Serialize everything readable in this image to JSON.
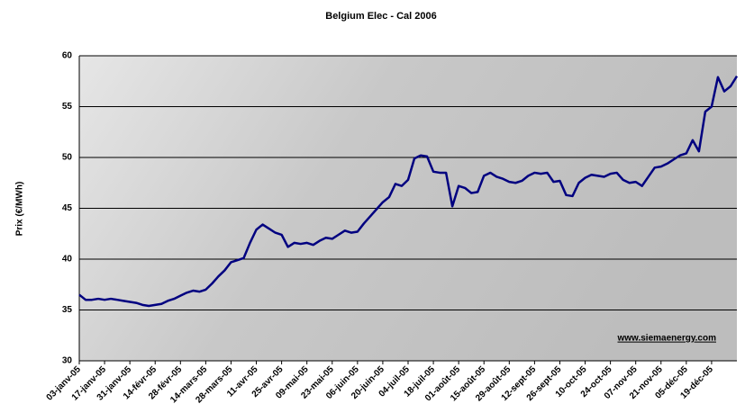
{
  "chart_data": {
    "type": "line",
    "title": "Belgium Elec - Cal 2006",
    "y_label": "Prix (€/MWh)",
    "annotation": "www.siemaenergy.com",
    "categories": [
      "03-janv-05",
      null,
      null,
      null,
      "17-janv-05",
      null,
      null,
      null,
      "31-janv-05",
      null,
      null,
      null,
      "14-févr-05",
      null,
      null,
      null,
      "28-févr-05",
      null,
      null,
      null,
      "14-mars-05",
      null,
      null,
      null,
      "28-mars-05",
      null,
      null,
      null,
      "11-avr-05",
      null,
      null,
      null,
      "25-avr-05",
      null,
      null,
      null,
      "09-mai-05",
      null,
      null,
      null,
      "23-mai-05",
      null,
      null,
      null,
      "06-juin-05",
      null,
      null,
      null,
      "20-juin-05",
      null,
      null,
      null,
      "04-juil-05",
      null,
      null,
      null,
      "18-juil-05",
      null,
      null,
      null,
      "01-août-05",
      null,
      null,
      null,
      "15-août-05",
      null,
      null,
      null,
      "29-août-05",
      null,
      null,
      null,
      "12-sept-05",
      null,
      null,
      null,
      "26-sept-05",
      null,
      null,
      null,
      "10-oct-05",
      null,
      null,
      null,
      "24-oct-05",
      null,
      null,
      null,
      "07-nov-05",
      null,
      null,
      null,
      "21-nov-05",
      null,
      null,
      null,
      "05-déc-05",
      null,
      null,
      null,
      "19-déc-05",
      null,
      null,
      null,
      null
    ],
    "series": [
      {
        "name": "Belgium Elec - Cal 2006",
        "color": "#000080",
        "values": [
          36.5,
          36.0,
          36.0,
          36.1,
          36.0,
          36.1,
          36.0,
          35.9,
          35.8,
          35.7,
          35.5,
          35.4,
          35.5,
          35.6,
          35.9,
          36.1,
          36.4,
          36.7,
          36.9,
          36.8,
          37.0,
          37.6,
          38.3,
          38.9,
          39.7,
          39.9,
          40.1,
          41.6,
          42.9,
          43.4,
          43.0,
          42.6,
          42.4,
          41.2,
          41.6,
          41.5,
          41.6,
          41.4,
          41.8,
          42.1,
          42.0,
          42.4,
          42.8,
          42.6,
          42.7,
          43.5,
          44.2,
          44.9,
          45.6,
          46.1,
          47.4,
          47.2,
          47.8,
          49.9,
          50.2,
          50.1,
          48.6,
          48.5,
          48.5,
          45.2,
          47.2,
          47.0,
          46.5,
          46.6,
          48.2,
          48.5,
          48.1,
          47.9,
          47.6,
          47.5,
          47.7,
          48.2,
          48.5,
          48.4,
          48.5,
          47.6,
          47.7,
          46.3,
          46.2,
          47.5,
          48.0,
          48.3,
          48.2,
          48.1,
          48.4,
          48.5,
          47.8,
          47.5,
          47.6,
          47.2,
          48.1,
          49.0,
          49.1,
          49.4,
          49.8,
          50.2,
          50.4,
          51.7,
          50.6,
          54.5,
          55.0,
          57.9,
          56.5,
          57.0,
          58.0
        ]
      }
    ],
    "ylim": [
      30,
      60
    ],
    "yticks": [
      30,
      35,
      40,
      45,
      50,
      55,
      60
    ],
    "grid": true
  }
}
